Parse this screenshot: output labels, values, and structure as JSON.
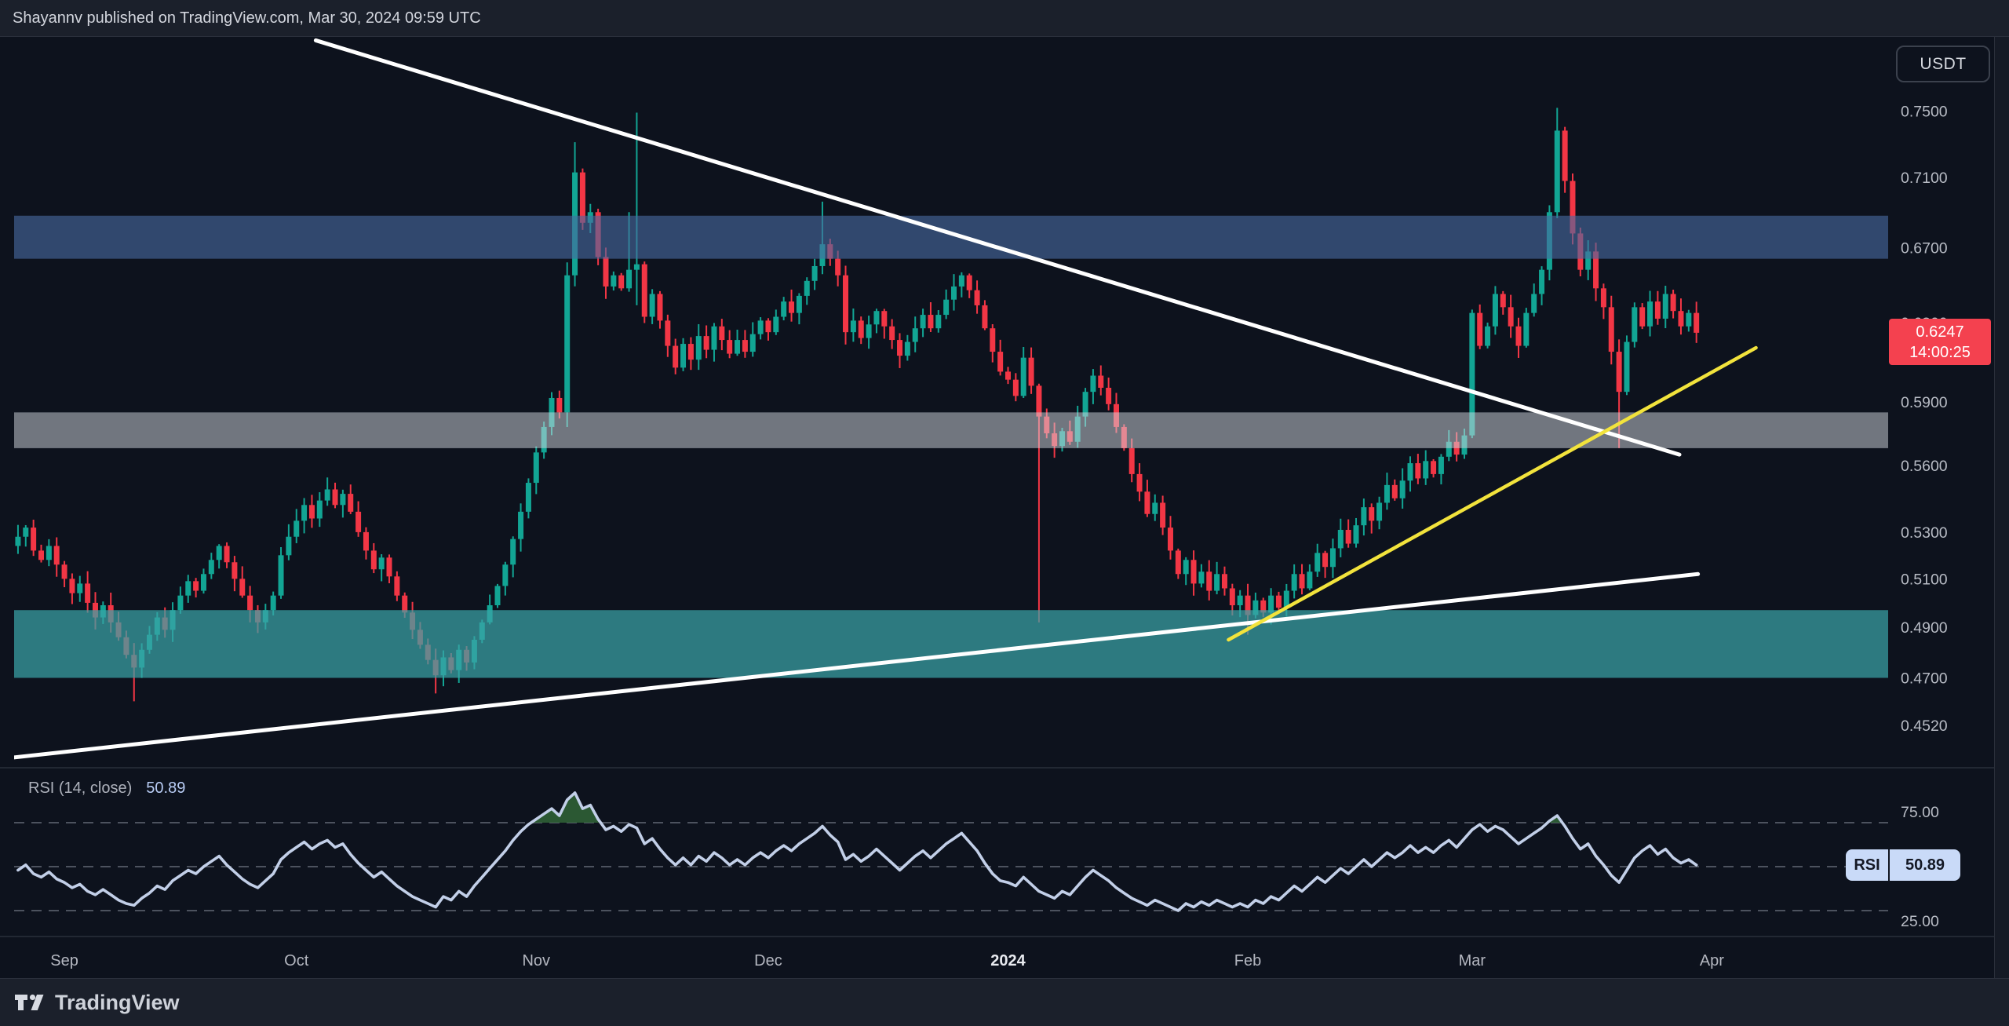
{
  "header": {
    "publish_line": "Shayannv published on TradingView.com, Mar 30, 2024 09:59 UTC"
  },
  "price_scale": {
    "currency": "USDT",
    "ticks": [
      {
        "text": "0.7500",
        "value": 0.75
      },
      {
        "text": "0.7100",
        "value": 0.71
      },
      {
        "text": "0.6700",
        "value": 0.67
      },
      {
        "text": "0.6300",
        "value": 0.63
      },
      {
        "text": "0.5900",
        "value": 0.59
      },
      {
        "text": "0.5600",
        "value": 0.56
      },
      {
        "text": "0.5300",
        "value": 0.53
      },
      {
        "text": "0.5100",
        "value": 0.51
      },
      {
        "text": "0.4900",
        "value": 0.49
      },
      {
        "text": "0.4700",
        "value": 0.47
      },
      {
        "text": "0.4520",
        "value": 0.452
      }
    ],
    "last_price": {
      "value": "0.6247",
      "countdown": "14:00:25"
    }
  },
  "time_axis": {
    "labels": [
      {
        "text": "Sep",
        "day": 6,
        "emphasis": false
      },
      {
        "text": "Oct",
        "day": 36,
        "emphasis": false
      },
      {
        "text": "Nov",
        "day": 67,
        "emphasis": false
      },
      {
        "text": "Dec",
        "day": 97,
        "emphasis": false
      },
      {
        "text": "2024",
        "day": 128,
        "emphasis": true
      },
      {
        "text": "Feb",
        "day": 159,
        "emphasis": false
      },
      {
        "text": "Mar",
        "day": 188,
        "emphasis": false
      },
      {
        "text": "Apr",
        "day": 219,
        "emphasis": false
      }
    ]
  },
  "rsi_panel": {
    "legend_title": "RSI (14, close)",
    "legend_value": "50.89",
    "axis_labels": [
      {
        "text": "75.00",
        "value": 75
      },
      {
        "text": "25.00",
        "value": 25
      }
    ],
    "badge": {
      "label": "RSI",
      "value": "50.89"
    }
  },
  "footer": {
    "brand": "TradingView"
  },
  "colors": {
    "candle_up": "#12a594",
    "candle_down": "#f23645",
    "badge_red": "#f4414f",
    "trendline_white": "#ffffff",
    "trendline_yellow": "#f2e33c",
    "rsi_line": "#c2cfe8",
    "rsi_overbought_fill": "rgba(47,97,54,0.9)",
    "guide_dash": "#4c525e",
    "tick_text": "#b8bcc5",
    "month_text": "#b4b7c0",
    "month_text_emphasis": "#e9ebf0"
  },
  "chart_data": [
    {
      "type": "candlestick",
      "title": "Daily candles, quoted in USDT",
      "interval": "1D",
      "start_date": "2023-08-26",
      "yscale": "log",
      "ylim": [
        0.44,
        0.8
      ],
      "first_open": 0.524,
      "closes": [
        0.528,
        0.532,
        0.522,
        0.518,
        0.524,
        0.516,
        0.51,
        0.504,
        0.508,
        0.5,
        0.494,
        0.499,
        0.492,
        0.486,
        0.479,
        0.474,
        0.481,
        0.487,
        0.494,
        0.489,
        0.497,
        0.503,
        0.509,
        0.505,
        0.512,
        0.518,
        0.524,
        0.517,
        0.51,
        0.503,
        0.497,
        0.492,
        0.497,
        0.503,
        0.52,
        0.528,
        0.535,
        0.542,
        0.536,
        0.544,
        0.549,
        0.542,
        0.547,
        0.539,
        0.53,
        0.522,
        0.514,
        0.519,
        0.511,
        0.503,
        0.496,
        0.489,
        0.483,
        0.477,
        0.471,
        0.478,
        0.473,
        0.481,
        0.476,
        0.485,
        0.492,
        0.499,
        0.507,
        0.516,
        0.527,
        0.539,
        0.552,
        0.566,
        0.578,
        0.592,
        0.585,
        0.655,
        0.713,
        0.684,
        0.69,
        0.665,
        0.649,
        0.655,
        0.648,
        0.658,
        0.661,
        0.633,
        0.645,
        0.631,
        0.618,
        0.607,
        0.619,
        0.611,
        0.623,
        0.616,
        0.628,
        0.621,
        0.614,
        0.621,
        0.615,
        0.624,
        0.631,
        0.625,
        0.633,
        0.641,
        0.635,
        0.644,
        0.652,
        0.66,
        0.672,
        0.664,
        0.655,
        0.625,
        0.631,
        0.622,
        0.629,
        0.636,
        0.628,
        0.621,
        0.613,
        0.62,
        0.627,
        0.634,
        0.627,
        0.634,
        0.642,
        0.649,
        0.655,
        0.647,
        0.639,
        0.627,
        0.615,
        0.605,
        0.601,
        0.593,
        0.612,
        0.598,
        0.583,
        0.575,
        0.569,
        0.576,
        0.571,
        0.583,
        0.595,
        0.603,
        0.597,
        0.589,
        0.578,
        0.568,
        0.556,
        0.548,
        0.538,
        0.543,
        0.532,
        0.522,
        0.512,
        0.518,
        0.508,
        0.513,
        0.505,
        0.512,
        0.506,
        0.499,
        0.503,
        0.495,
        0.501,
        0.496,
        0.503,
        0.498,
        0.505,
        0.512,
        0.506,
        0.513,
        0.521,
        0.515,
        0.523,
        0.531,
        0.525,
        0.533,
        0.541,
        0.535,
        0.543,
        0.551,
        0.545,
        0.553,
        0.561,
        0.554,
        0.562,
        0.556,
        0.564,
        0.571,
        0.565,
        0.574,
        0.635,
        0.618,
        0.628,
        0.645,
        0.638,
        0.628,
        0.618,
        0.635,
        0.645,
        0.658,
        0.69,
        0.738,
        0.708,
        0.678,
        0.658,
        0.668,
        0.648,
        0.638,
        0.615,
        0.595,
        0.62,
        0.638,
        0.628,
        0.641,
        0.632,
        0.645,
        0.636,
        0.628,
        0.635,
        0.6247
      ],
      "key_extremes": {
        "15": {
          "low": 0.461
        },
        "54": {
          "low": 0.464
        },
        "71": {
          "high": 0.662,
          "low": 0.578
        },
        "72": {
          "high": 0.731
        },
        "79": {
          "high": 0.69
        },
        "80": {
          "high": 0.749,
          "low": 0.639
        },
        "104": {
          "high": 0.696
        },
        "132": {
          "low": 0.492
        },
        "159": {
          "low": 0.487
        },
        "199": {
          "high": 0.752
        },
        "207": {
          "low": 0.568
        }
      },
      "wick_est_pct": 0.9,
      "zones": [
        {
          "name": "resistance-zone",
          "price_from": 0.664,
          "price_to": 0.688,
          "fill": "rgba(73,106,160,0.62)"
        },
        {
          "name": "mid-zone",
          "price_from": 0.568,
          "price_to": 0.585,
          "fill": "rgba(213,218,226,0.5)"
        },
        {
          "name": "demand-zone",
          "price_from": 0.47,
          "price_to": 0.497,
          "fill": "rgba(58,162,166,0.72)"
        }
      ],
      "trendlines": [
        {
          "name": "descending-trendline",
          "color": "#ffffff",
          "width": 5,
          "from": {
            "day": 38.5,
            "price": 0.795
          },
          "to": {
            "day": 214.8,
            "price": 0.565
          }
        },
        {
          "name": "ascending-trendline",
          "color": "#ffffff",
          "width": 5,
          "from": {
            "day": -1.0,
            "price": 0.44
          },
          "to": {
            "day": 217.2,
            "price": 0.512
          }
        },
        {
          "name": "rising-yellow-trendline",
          "color": "#f2e33c",
          "width": 4.5,
          "from": {
            "day": 156.5,
            "price": 0.485
          },
          "to": {
            "day": 224.7,
            "price": 0.617
          }
        }
      ],
      "last_price": 0.6247
    },
    {
      "type": "line",
      "name": "RSI (14, close)",
      "last_value": 50.89,
      "guides": [
        75,
        50,
        25
      ],
      "overbought_level": 75,
      "values": [
        48,
        51,
        46,
        44,
        47,
        43,
        41,
        38,
        40,
        36,
        34,
        37,
        34,
        31,
        29,
        28,
        32,
        35,
        39,
        37,
        42,
        45,
        48,
        46,
        50,
        53,
        56,
        51,
        47,
        43,
        40,
        38,
        42,
        46,
        54,
        58,
        61,
        64,
        60,
        63,
        65,
        61,
        63,
        57,
        52,
        48,
        44,
        47,
        43,
        39,
        36,
        33,
        31,
        29,
        27,
        33,
        31,
        36,
        33,
        39,
        44,
        49,
        54,
        59,
        65,
        70,
        74,
        77,
        80,
        83,
        79,
        88,
        92,
        83,
        85,
        77,
        71,
        73,
        70,
        74,
        72,
        63,
        66,
        60,
        55,
        51,
        55,
        51,
        56,
        53,
        58,
        55,
        51,
        54,
        51,
        55,
        58,
        55,
        59,
        62,
        59,
        63,
        66,
        69,
        73,
        68,
        64,
        54,
        57,
        53,
        56,
        60,
        56,
        52,
        48,
        52,
        56,
        59,
        55,
        59,
        63,
        66,
        69,
        64,
        59,
        52,
        46,
        42,
        41,
        39,
        44,
        40,
        36,
        34,
        32,
        36,
        34,
        39,
        44,
        48,
        45,
        42,
        38,
        35,
        32,
        30,
        28,
        31,
        29,
        27,
        25,
        29,
        27,
        30,
        28,
        31,
        29,
        27,
        29,
        27,
        31,
        29,
        33,
        31,
        35,
        39,
        36,
        40,
        44,
        41,
        45,
        49,
        46,
        50,
        54,
        50,
        54,
        58,
        55,
        58,
        62,
        58,
        61,
        58,
        62,
        65,
        61,
        66,
        71,
        74,
        70,
        73,
        71,
        67,
        63,
        66,
        69,
        72,
        76,
        79,
        73,
        66,
        60,
        63,
        56,
        51,
        45,
        41,
        48,
        55,
        59,
        62,
        57,
        60,
        55,
        52,
        54,
        50.89
      ]
    }
  ]
}
